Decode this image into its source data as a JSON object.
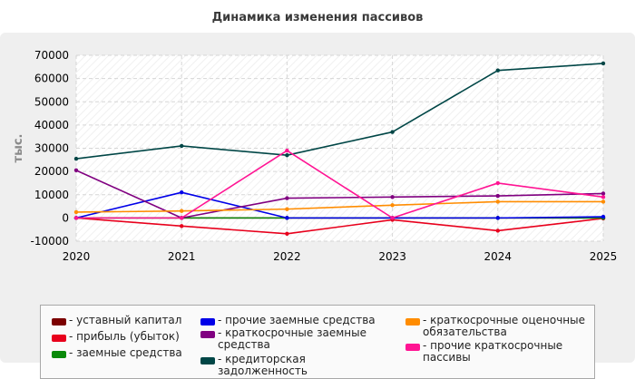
{
  "chart_data": {
    "type": "line",
    "title": "Динамика изменения пассивов",
    "ylabel": "тыс.",
    "xlabel": "",
    "x": [
      "2020",
      "2021",
      "2022",
      "2023",
      "2024",
      "2025"
    ],
    "ylim": [
      -10000,
      70000
    ],
    "yticks": [
      "70000",
      "60000",
      "50000",
      "40000",
      "30000",
      "20000",
      "10000",
      "0",
      "-10000"
    ],
    "grid": true,
    "legend_position": "bottom",
    "series": [
      {
        "name": "уставный капитал",
        "color": "#7b0000",
        "values": [
          0,
          0,
          0,
          0,
          0,
          0
        ]
      },
      {
        "name": "прибыль (убыток)",
        "color": "#e8001c",
        "values": [
          0,
          -3500,
          -6800,
          -800,
          -5500,
          -200
        ]
      },
      {
        "name": "заемные средства",
        "color": "#0a8a0a",
        "values": [
          0,
          0,
          0,
          0,
          0,
          0
        ]
      },
      {
        "name": "прочие заемные средства",
        "color": "#0000e8",
        "values": [
          0,
          11000,
          0,
          0,
          0,
          500
        ]
      },
      {
        "name": "краткосрочные заемные средства",
        "color": "#800080",
        "values": [
          20500,
          0,
          8500,
          9000,
          9500,
          10500
        ]
      },
      {
        "name": "кредиторская задолженность",
        "color": "#004646",
        "values": [
          25500,
          31000,
          27000,
          37000,
          63500,
          66500
        ]
      },
      {
        "name": "краткосрочные оценочные обязательства",
        "color": "#ff8c00",
        "values": [
          2500,
          3000,
          3800,
          5500,
          7000,
          7000
        ]
      },
      {
        "name": "прочие краткосрочные пассивы",
        "color": "#ff1493",
        "values": [
          0,
          0,
          29000,
          0,
          15000,
          9000
        ]
      }
    ]
  }
}
